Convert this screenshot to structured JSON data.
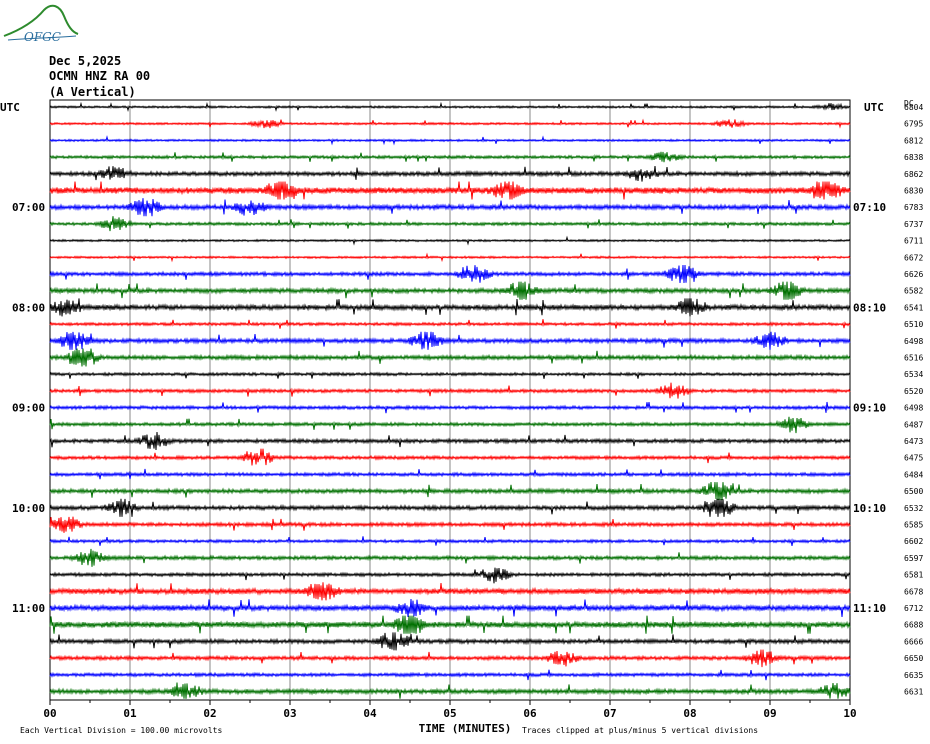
{
  "logo": {
    "text": "OFGC",
    "color": "#2a6e9e",
    "swoosh_color": "#2e8b2e"
  },
  "header": {
    "date": "Dec 5,2025",
    "station": "OCMN HNZ RA 00",
    "component": "(A Vertical)"
  },
  "chart_data": {
    "type": "line",
    "title": "",
    "xlabel": "TIME (MINUTES)",
    "x_ticks": [
      "00",
      "01",
      "02",
      "03",
      "04",
      "05",
      "06",
      "07",
      "08",
      "09",
      "10"
    ],
    "xlim": [
      0,
      10
    ],
    "left_axis_label": "UTC",
    "right_axis_label": "UTC",
    "dc_label": "DC",
    "left_time_labels": [
      {
        "trace_index": 6,
        "label": "07:00"
      },
      {
        "trace_index": 12,
        "label": "08:00"
      },
      {
        "trace_index": 18,
        "label": "09:00"
      },
      {
        "trace_index": 24,
        "label": "10:00"
      },
      {
        "trace_index": 30,
        "label": "11:00"
      }
    ],
    "right_time_labels": [
      {
        "trace_index": 6,
        "label": "07:10"
      },
      {
        "trace_index": 12,
        "label": "08:10"
      },
      {
        "trace_index": 18,
        "label": "09:10"
      },
      {
        "trace_index": 24,
        "label": "10:10"
      },
      {
        "trace_index": 30,
        "label": "11:10"
      }
    ],
    "trace_colors": [
      "#000000",
      "#ff0000",
      "#0000ff",
      "#007000"
    ],
    "dc_offsets": [
      6804,
      6795,
      6812,
      6838,
      6862,
      6830,
      6783,
      6737,
      6711,
      6672,
      6626,
      6582,
      6541,
      6510,
      6498,
      6516,
      6534,
      6520,
      6498,
      6487,
      6473,
      6475,
      6484,
      6500,
      6532,
      6585,
      6602,
      6597,
      6581,
      6678,
      6712,
      6688,
      6666,
      6650,
      6635,
      6631
    ],
    "trace_amplitude": [
      1,
      1,
      1,
      1.4,
      2,
      3,
      2.2,
      1.4,
      1,
      1,
      1.8,
      2.2,
      2.4,
      1.4,
      2,
      2,
      1.4,
      1.6,
      1.6,
      1.6,
      1.8,
      1.6,
      1.6,
      2,
      2,
      1.8,
      1.4,
      1.8,
      1.6,
      2.6,
      2.6,
      2.8,
      2,
      1.8,
      1.6,
      2.2
    ],
    "events": [
      {
        "trace_index": 0,
        "x": 9.75,
        "amp": 1.2
      },
      {
        "trace_index": 1,
        "x": 2.7,
        "amp": 1.5
      },
      {
        "trace_index": 1,
        "x": 8.5,
        "amp": 1.5
      },
      {
        "trace_index": 3,
        "x": 7.7,
        "amp": 2
      },
      {
        "trace_index": 4,
        "x": 0.8,
        "amp": 2.5
      },
      {
        "trace_index": 4,
        "x": 7.4,
        "amp": 2.5
      },
      {
        "trace_index": 5,
        "x": 2.9,
        "amp": 5
      },
      {
        "trace_index": 5,
        "x": 5.7,
        "amp": 4
      },
      {
        "trace_index": 5,
        "x": 9.7,
        "amp": 5
      },
      {
        "trace_index": 6,
        "x": 1.2,
        "amp": 4
      },
      {
        "trace_index": 6,
        "x": 2.5,
        "amp": 3
      },
      {
        "trace_index": 7,
        "x": 0.8,
        "amp": 2.5
      },
      {
        "trace_index": 10,
        "x": 5.3,
        "amp": 4
      },
      {
        "trace_index": 10,
        "x": 7.9,
        "amp": 4
      },
      {
        "trace_index": 11,
        "x": 5.9,
        "amp": 4
      },
      {
        "trace_index": 11,
        "x": 9.2,
        "amp": 4
      },
      {
        "trace_index": 12,
        "x": 0.2,
        "amp": 3
      },
      {
        "trace_index": 12,
        "x": 8.0,
        "amp": 4
      },
      {
        "trace_index": 14,
        "x": 0.3,
        "amp": 4
      },
      {
        "trace_index": 14,
        "x": 4.7,
        "amp": 4
      },
      {
        "trace_index": 14,
        "x": 9.0,
        "amp": 4
      },
      {
        "trace_index": 15,
        "x": 0.4,
        "amp": 5
      },
      {
        "trace_index": 17,
        "x": 7.8,
        "amp": 3
      },
      {
        "trace_index": 19,
        "x": 9.3,
        "amp": 3
      },
      {
        "trace_index": 20,
        "x": 1.3,
        "amp": 3
      },
      {
        "trace_index": 21,
        "x": 2.6,
        "amp": 4
      },
      {
        "trace_index": 23,
        "x": 8.35,
        "amp": 5
      },
      {
        "trace_index": 24,
        "x": 0.9,
        "amp": 3
      },
      {
        "trace_index": 24,
        "x": 8.35,
        "amp": 5
      },
      {
        "trace_index": 25,
        "x": 0.2,
        "amp": 3
      },
      {
        "trace_index": 27,
        "x": 0.5,
        "amp": 3
      },
      {
        "trace_index": 28,
        "x": 5.55,
        "amp": 3
      },
      {
        "trace_index": 29,
        "x": 3.4,
        "amp": 4
      },
      {
        "trace_index": 30,
        "x": 4.5,
        "amp": 3
      },
      {
        "trace_index": 31,
        "x": 4.5,
        "amp": 5
      },
      {
        "trace_index": 32,
        "x": 4.3,
        "amp": 5
      },
      {
        "trace_index": 33,
        "x": 6.4,
        "amp": 3
      },
      {
        "trace_index": 33,
        "x": 8.9,
        "amp": 3
      },
      {
        "trace_index": 35,
        "x": 1.7,
        "amp": 3
      },
      {
        "trace_index": 35,
        "x": 9.8,
        "amp": 3
      }
    ],
    "grid": true
  },
  "footer": {
    "scale_note": "Each Vertical Division =  100.00 microvolts",
    "clip_note": "Traces clipped at plus/minus 5 vertical divisions"
  }
}
